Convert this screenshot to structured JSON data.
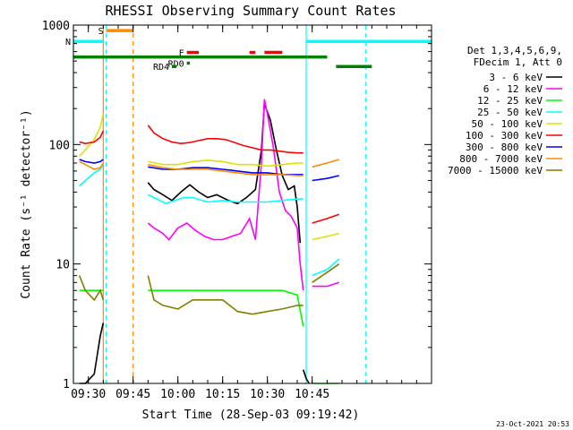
{
  "chart_data": {
    "type": "line",
    "title": "RHESSI Observing Summary Count Rates",
    "xlabel": "Start Time (28-Sep-03 09:19:42)",
    "ylabel": "Count Rate (s⁻¹ detector⁻¹)",
    "yscale": "log",
    "ylim": [
      1,
      1000
    ],
    "xlim": [
      565,
      685
    ],
    "x_ticks": [
      {
        "v": 570,
        "label": "09:30"
      },
      {
        "v": 585,
        "label": "09:45"
      },
      {
        "v": 600,
        "label": "10:00"
      },
      {
        "v": 615,
        "label": "10:15"
      },
      {
        "v": 630,
        "label": "10:30"
      },
      {
        "v": 645,
        "label": "10:45"
      }
    ],
    "y_ticks": [
      {
        "v": 1,
        "label": "1"
      },
      {
        "v": 10,
        "label": "10"
      },
      {
        "v": 100,
        "label": "100"
      },
      {
        "v": 1000,
        "label": "1000"
      }
    ],
    "footer_date": "23-Oct-2021 20:53",
    "legend_header": [
      "Det 1,3,4,5,6,9,",
      "FDecim 1, Att 0"
    ],
    "series": [
      {
        "name": "3 - 6 keV",
        "color": "#000000",
        "segments": [
          [
            [
              567,
              1
            ],
            [
              569,
              1
            ],
            [
              572,
              1.2
            ],
            [
              574,
              2.5
            ],
            [
              575,
              3.2
            ]
          ],
          [
            [
              590,
              48
            ],
            [
              592,
              42
            ],
            [
              595,
              38
            ],
            [
              598,
              34
            ],
            [
              601,
              40
            ],
            [
              604,
              46
            ],
            [
              607,
              40
            ],
            [
              610,
              36
            ],
            [
              613,
              38
            ],
            [
              617,
              34
            ],
            [
              620,
              32
            ],
            [
              623,
              36
            ],
            [
              626,
              42
            ],
            [
              628,
              90
            ],
            [
              629,
              220
            ],
            [
              631,
              160
            ],
            [
              633,
              90
            ],
            [
              635,
              55
            ],
            [
              637,
              42
            ],
            [
              639,
              45
            ],
            [
              640,
              30
            ],
            [
              641,
              15
            ]
          ],
          [
            [
              642,
              1.3
            ],
            [
              643,
              1.1
            ],
            [
              644,
              1
            ]
          ]
        ]
      },
      {
        "name": "6 - 12 keV",
        "color": "#ff00ff",
        "segments": [
          [
            [
              590,
              22
            ],
            [
              592,
              20
            ],
            [
              595,
              18
            ],
            [
              597,
              16
            ],
            [
              600,
              20
            ],
            [
              603,
              22
            ],
            [
              606,
              19
            ],
            [
              609,
              17
            ],
            [
              612,
              16
            ],
            [
              615,
              16
            ],
            [
              618,
              17
            ],
            [
              621,
              18
            ],
            [
              624,
              24
            ],
            [
              626,
              16
            ],
            [
              628,
              70
            ],
            [
              629,
              240
            ],
            [
              630,
              180
            ],
            [
              632,
              95
            ],
            [
              634,
              40
            ],
            [
              636,
              28
            ],
            [
              638,
              25
            ],
            [
              640,
              20
            ],
            [
              641,
              10
            ],
            [
              642,
              6
            ]
          ],
          [
            [
              645,
              6.5
            ],
            [
              650,
              6.5
            ],
            [
              654,
              7
            ]
          ]
        ]
      },
      {
        "name": "12 - 25 keV",
        "color": "#00ff00",
        "segments": [
          [
            [
              567,
              6
            ],
            [
              569,
              6
            ],
            [
              572,
              6
            ],
            [
              574,
              6
            ],
            [
              575,
              6
            ]
          ],
          [
            [
              590,
              6
            ],
            [
              595,
              6
            ],
            [
              600,
              6
            ],
            [
              605,
              6
            ],
            [
              610,
              6
            ],
            [
              615,
              6
            ],
            [
              620,
              6
            ],
            [
              625,
              6
            ],
            [
              630,
              6
            ],
            [
              635,
              6
            ],
            [
              640,
              5.5
            ],
            [
              642,
              3
            ]
          ],
          [
            [
              645,
              1
            ],
            [
              648,
              1
            ],
            [
              650,
              1
            ],
            [
              652,
              1
            ],
            [
              654,
              1
            ]
          ]
        ]
      },
      {
        "name": "25 - 50 keV",
        "color": "#00ffff",
        "segments": [
          [
            [
              567,
              45
            ],
            [
              569,
              50
            ],
            [
              572,
              58
            ],
            [
              574,
              62
            ],
            [
              575,
              68
            ]
          ],
          [
            [
              590,
              38
            ],
            [
              593,
              35
            ],
            [
              596,
              32
            ],
            [
              599,
              34
            ],
            [
              602,
              36
            ],
            [
              605,
              36
            ],
            [
              610,
              33
            ],
            [
              615,
              34
            ],
            [
              620,
              33
            ],
            [
              625,
              33
            ],
            [
              630,
              33
            ],
            [
              635,
              34
            ],
            [
              640,
              35
            ],
            [
              642,
              35
            ]
          ],
          [
            [
              645,
              8
            ],
            [
              650,
              9
            ],
            [
              654,
              11
            ]
          ]
        ]
      },
      {
        "name": "50 - 100 keV",
        "color": "#e0e000",
        "segments": [
          [
            [
              567,
              80
            ],
            [
              569,
              90
            ],
            [
              572,
              110
            ],
            [
              574,
              140
            ],
            [
              575,
              180
            ]
          ],
          [
            [
              590,
              72
            ],
            [
              595,
              68
            ],
            [
              600,
              68
            ],
            [
              605,
              72
            ],
            [
              610,
              74
            ],
            [
              615,
              72
            ],
            [
              620,
              68
            ],
            [
              625,
              68
            ],
            [
              630,
              66
            ],
            [
              635,
              68
            ],
            [
              640,
              70
            ],
            [
              642,
              70
            ]
          ],
          [
            [
              645,
              16
            ],
            [
              650,
              17
            ],
            [
              654,
              18
            ]
          ]
        ]
      },
      {
        "name": "100 - 300 keV",
        "color": "#ff0000",
        "segments": [
          [
            [
              567,
              105
            ],
            [
              569,
              102
            ],
            [
              572,
              105
            ],
            [
              574,
              115
            ],
            [
              575,
              130
            ]
          ],
          [
            [
              590,
              145
            ],
            [
              592,
              125
            ],
            [
              595,
              112
            ],
            [
              598,
              105
            ],
            [
              601,
              102
            ],
            [
              604,
              104
            ],
            [
              607,
              108
            ],
            [
              610,
              112
            ],
            [
              613,
              112
            ],
            [
              616,
              110
            ],
            [
              619,
              104
            ],
            [
              622,
              98
            ],
            [
              625,
              94
            ],
            [
              628,
              90
            ],
            [
              631,
              90
            ],
            [
              634,
              88
            ],
            [
              637,
              86
            ],
            [
              640,
              85
            ],
            [
              642,
              85
            ]
          ],
          [
            [
              645,
              22
            ],
            [
              650,
              24
            ],
            [
              654,
              26
            ]
          ]
        ]
      },
      {
        "name": "300 - 800 keV",
        "color": "#0000ff",
        "segments": [
          [
            [
              567,
              75
            ],
            [
              569,
              72
            ],
            [
              572,
              70
            ],
            [
              574,
              72
            ],
            [
              575,
              75
            ]
          ],
          [
            [
              590,
              65
            ],
            [
              595,
              62
            ],
            [
              600,
              62
            ],
            [
              605,
              64
            ],
            [
              610,
              64
            ],
            [
              615,
              62
            ],
            [
              620,
              60
            ],
            [
              625,
              58
            ],
            [
              630,
              58
            ],
            [
              635,
              56
            ],
            [
              640,
              56
            ],
            [
              642,
              56
            ]
          ],
          [
            [
              645,
              50
            ],
            [
              650,
              52
            ],
            [
              654,
              55
            ]
          ]
        ]
      },
      {
        "name": "800 - 7000 keV",
        "color": "#ff8c00",
        "segments": [
          [
            [
              567,
              72
            ],
            [
              569,
              68
            ],
            [
              572,
              62
            ],
            [
              574,
              64
            ],
            [
              575,
              70
            ]
          ],
          [
            [
              590,
              68
            ],
            [
              595,
              64
            ],
            [
              600,
              62
            ],
            [
              605,
              62
            ],
            [
              610,
              62
            ],
            [
              615,
              60
            ],
            [
              620,
              58
            ],
            [
              625,
              56
            ],
            [
              630,
              56
            ],
            [
              635,
              56
            ],
            [
              640,
              55
            ],
            [
              642,
              55
            ]
          ],
          [
            [
              645,
              65
            ],
            [
              650,
              70
            ],
            [
              654,
              75
            ]
          ]
        ]
      },
      {
        "name": "7000 - 15000 keV",
        "color": "#7f7f00",
        "segments": [
          [
            [
              567,
              8
            ],
            [
              569,
              6
            ],
            [
              572,
              5
            ],
            [
              574,
              6
            ],
            [
              575,
              5
            ]
          ],
          [
            [
              590,
              8
            ],
            [
              592,
              5
            ],
            [
              595,
              4.5
            ],
            [
              600,
              4.2
            ],
            [
              605,
              5
            ],
            [
              610,
              5
            ],
            [
              615,
              5
            ],
            [
              620,
              4
            ],
            [
              625,
              3.8
            ],
            [
              630,
              4
            ],
            [
              635,
              4.2
            ],
            [
              640,
              4.5
            ],
            [
              642,
              4.5
            ]
          ],
          [
            [
              645,
              7
            ],
            [
              650,
              8.5
            ],
            [
              654,
              10
            ]
          ]
        ]
      }
    ],
    "bars": [
      {
        "label": "S",
        "label_color": "#ff8c00",
        "color": "#ff8c00",
        "y": 900,
        "x0": 576,
        "x1": 585
      },
      {
        "label": "N",
        "label_color": "#00ffff",
        "color": "#00ffff",
        "y": 730,
        "x0": 565,
        "x1": 575
      },
      {
        "label": "",
        "label_color": "#00ffff",
        "color": "#00ffff",
        "y": 730,
        "x0": 643,
        "x1": 685
      },
      {
        "label": "",
        "label_color": "#008000",
        "color": "#008000",
        "y": 540,
        "x0": 565,
        "x1": 650
      },
      {
        "label": "",
        "label_color": "#008000",
        "color": "#008000",
        "y": 450,
        "x0": 653,
        "x1": 665
      },
      {
        "label": "F",
        "label_color": "#ff0000",
        "color": "#ff0000",
        "y": 590,
        "x0": 603,
        "x1": 607
      },
      {
        "label": "",
        "label_color": "#ff0000",
        "color": "#ff0000",
        "y": 590,
        "x0": 624,
        "x1": 626
      },
      {
        "label": "",
        "label_color": "#ff0000",
        "color": "#ff0000",
        "y": 590,
        "x0": 629,
        "x1": 635
      },
      {
        "label": "RD0",
        "label_color": "#008000",
        "color": "#008000",
        "y": 480,
        "x0": 603,
        "x1": 604
      },
      {
        "label": "RD4",
        "label_color": "#008000",
        "color": "#008000",
        "y": 450,
        "x0": 598,
        "x1": 599.5
      }
    ],
    "vlines": [
      {
        "x": 565,
        "color": "#00ffff",
        "dashed": false
      },
      {
        "x": 575,
        "color": "#ff8c00",
        "dashed": false
      },
      {
        "x": 576,
        "color": "#00ffff",
        "dashed": true
      },
      {
        "x": 585,
        "color": "#ff8c00",
        "dashed": true
      },
      {
        "x": 643,
        "color": "#00ffff",
        "dashed": false
      },
      {
        "x": 663,
        "color": "#00ffff",
        "dashed": true
      }
    ]
  }
}
